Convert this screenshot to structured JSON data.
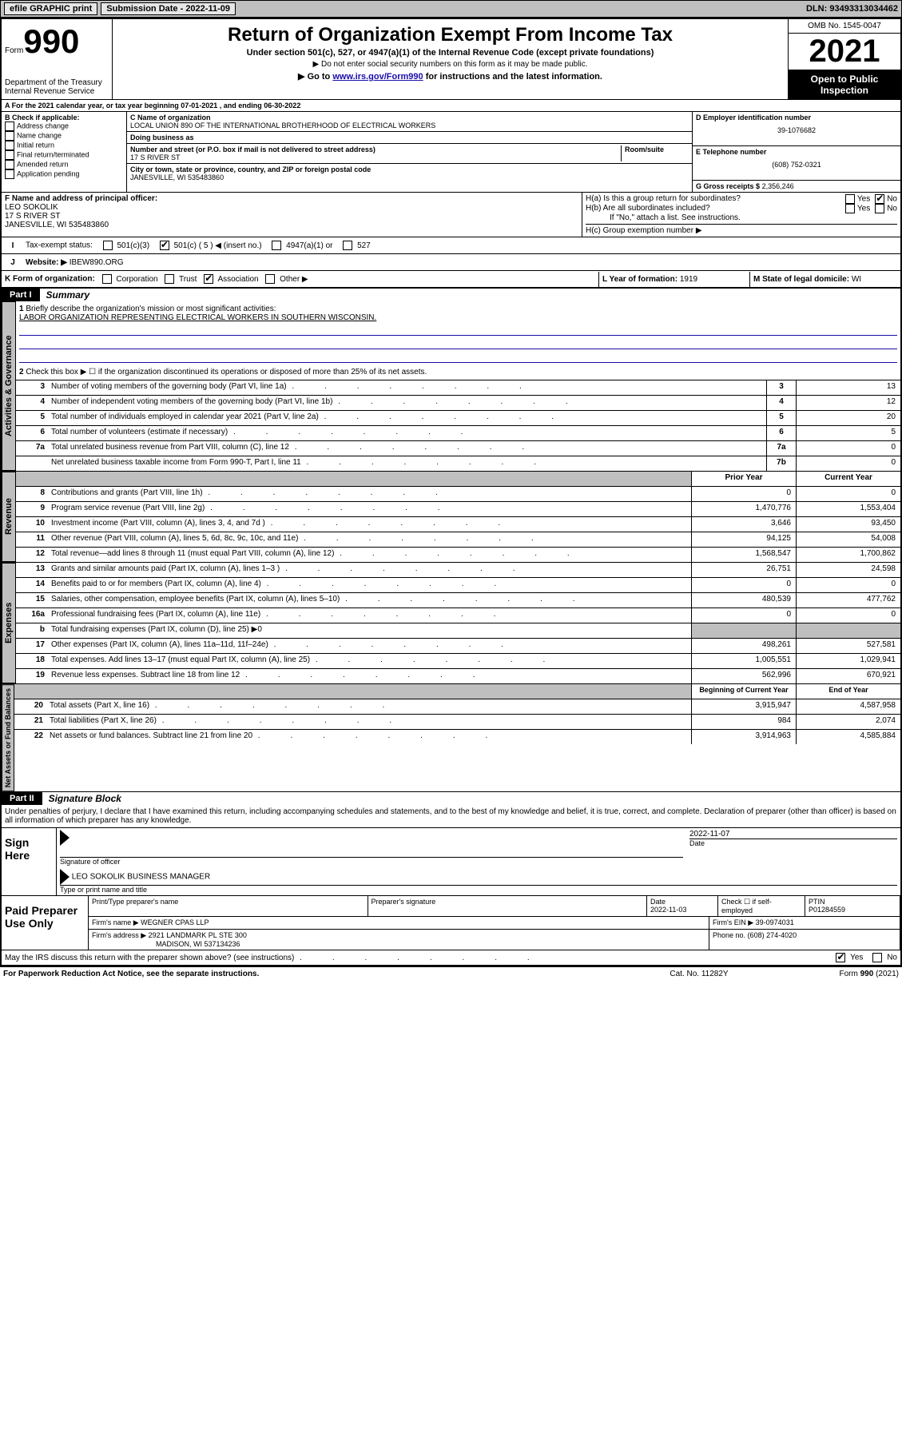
{
  "topbar": {
    "efile": "efile GRAPHIC print",
    "submission_label": "Submission Date - 2022-11-09",
    "dln": "DLN: 93493313034462"
  },
  "header": {
    "form_word": "Form",
    "form_number": "990",
    "dept": "Department of the Treasury",
    "irs": "Internal Revenue Service",
    "title": "Return of Organization Exempt From Income Tax",
    "subtitle1": "Under section 501(c), 527, or 4947(a)(1) of the Internal Revenue Code (except private foundations)",
    "subtitle2": "▶ Do not enter social security numbers on this form as it may be made public.",
    "subtitle3_pre": "▶ Go to ",
    "subtitle3_link": "www.irs.gov/Form990",
    "subtitle3_post": " for instructions and the latest information.",
    "omb": "OMB No. 1545-0047",
    "year": "2021",
    "open_public": "Open to Public Inspection"
  },
  "line_a": "A For the 2021 calendar year, or tax year beginning 07-01-2021   , and ending 06-30-2022",
  "section_b": {
    "heading": "B Check if applicable:",
    "items": [
      "Address change",
      "Name change",
      "Initial return",
      "Final return/terminated",
      "Amended return",
      "Application pending"
    ]
  },
  "section_c": {
    "name_label": "C Name of organization",
    "name": "LOCAL UNION 890 OF THE INTERNATIONAL BROTHERHOOD OF ELECTRICAL WORKERS",
    "dba_label": "Doing business as",
    "street_label": "Number and street (or P.O. box if mail is not delivered to street address)",
    "room_label": "Room/suite",
    "street": "17 S RIVER ST",
    "city_label": "City or town, state or province, country, and ZIP or foreign postal code",
    "city": "JANESVILLE, WI  535483860"
  },
  "section_d": {
    "label": "D Employer identification number",
    "value": "39-1076682"
  },
  "section_e": {
    "label": "E Telephone number",
    "value": "(608) 752-0321"
  },
  "section_g": {
    "label": "G Gross receipts $",
    "value": "2,356,246"
  },
  "section_f": {
    "label": "F Name and address of principal officer:",
    "name": "LEO SOKOLIK",
    "street": "17 S RIVER ST",
    "city": "JANESVILLE, WI  535483860"
  },
  "section_h": {
    "ha_label": "H(a)  Is this a group return for subordinates?",
    "hb_label": "H(b)  Are all subordinates included?",
    "hb_note": "If \"No,\" attach a list. See instructions.",
    "hc_label": "H(c)  Group exemption number ▶",
    "yes": "Yes",
    "no": "No"
  },
  "section_i": {
    "label": "Tax-exempt status:",
    "opt1": "501(c)(3)",
    "opt2": "501(c) ( 5 ) ◀ (insert no.)",
    "opt3": "4947(a)(1) or",
    "opt4": "527"
  },
  "section_j": {
    "label": "Website: ▶",
    "value": "IBEW890.ORG"
  },
  "section_k": {
    "label": "K Form of organization:",
    "opts": [
      "Corporation",
      "Trust",
      "Association",
      "Other ▶"
    ]
  },
  "section_l": {
    "label": "L Year of formation:",
    "value": "1919"
  },
  "section_m": {
    "label": "M State of legal domicile:",
    "value": "WI"
  },
  "part1": {
    "tag": "Part I",
    "title": "Summary",
    "q1_label": "Briefly describe the organization's mission or most significant activities:",
    "q1_text": "LABOR ORGANIZATION REPRESENTING ELECTRICAL WORKERS IN SOUTHERN WISCONSIN.",
    "q2": "Check this box ▶ ☐  if the organization discontinued its operations or disposed of more than 25% of its net assets.",
    "vtabs": {
      "gov": "Activities & Governance",
      "rev": "Revenue",
      "exp": "Expenses",
      "net": "Net Assets or Fund Balances"
    },
    "rows_gov": [
      {
        "n": "3",
        "d": "Number of voting members of the governing body (Part VI, line 1a)",
        "box": "3",
        "v": "13"
      },
      {
        "n": "4",
        "d": "Number of independent voting members of the governing body (Part VI, line 1b)",
        "box": "4",
        "v": "12"
      },
      {
        "n": "5",
        "d": "Total number of individuals employed in calendar year 2021 (Part V, line 2a)",
        "box": "5",
        "v": "20"
      },
      {
        "n": "6",
        "d": "Total number of volunteers (estimate if necessary)",
        "box": "6",
        "v": "5"
      },
      {
        "n": "7a",
        "d": "Total unrelated business revenue from Part VIII, column (C), line 12",
        "box": "7a",
        "v": "0"
      },
      {
        "n": "",
        "d": "Net unrelated business taxable income from Form 990-T, Part I, line 11",
        "box": "7b",
        "v": "0"
      }
    ],
    "col_hdr_prior": "Prior Year",
    "col_hdr_current": "Current Year",
    "rows_rev": [
      {
        "n": "8",
        "d": "Contributions and grants (Part VIII, line 1h)",
        "p": "0",
        "c": "0"
      },
      {
        "n": "9",
        "d": "Program service revenue (Part VIII, line 2g)",
        "p": "1,470,776",
        "c": "1,553,404"
      },
      {
        "n": "10",
        "d": "Investment income (Part VIII, column (A), lines 3, 4, and 7d )",
        "p": "3,646",
        "c": "93,450"
      },
      {
        "n": "11",
        "d": "Other revenue (Part VIII, column (A), lines 5, 6d, 8c, 9c, 10c, and 11e)",
        "p": "94,125",
        "c": "54,008"
      },
      {
        "n": "12",
        "d": "Total revenue—add lines 8 through 11 (must equal Part VIII, column (A), line 12)",
        "p": "1,568,547",
        "c": "1,700,862"
      }
    ],
    "rows_exp": [
      {
        "n": "13",
        "d": "Grants and similar amounts paid (Part IX, column (A), lines 1–3 )",
        "p": "26,751",
        "c": "24,598"
      },
      {
        "n": "14",
        "d": "Benefits paid to or for members (Part IX, column (A), line 4)",
        "p": "0",
        "c": "0"
      },
      {
        "n": "15",
        "d": "Salaries, other compensation, employee benefits (Part IX, column (A), lines 5–10)",
        "p": "480,539",
        "c": "477,762"
      },
      {
        "n": "16a",
        "d": "Professional fundraising fees (Part IX, column (A), line 11e)",
        "p": "0",
        "c": "0"
      },
      {
        "n": "b",
        "d": "Total fundraising expenses (Part IX, column (D), line 25) ▶0",
        "p": "",
        "c": "",
        "grey": true
      },
      {
        "n": "17",
        "d": "Other expenses (Part IX, column (A), lines 11a–11d, 11f–24e)",
        "p": "498,261",
        "c": "527,581"
      },
      {
        "n": "18",
        "d": "Total expenses. Add lines 13–17 (must equal Part IX, column (A), line 25)",
        "p": "1,005,551",
        "c": "1,029,941"
      },
      {
        "n": "19",
        "d": "Revenue less expenses. Subtract line 18 from line 12",
        "p": "562,996",
        "c": "670,921"
      }
    ],
    "col_hdr_begin": "Beginning of Current Year",
    "col_hdr_end": "End of Year",
    "rows_net": [
      {
        "n": "20",
        "d": "Total assets (Part X, line 16)",
        "p": "3,915,947",
        "c": "4,587,958"
      },
      {
        "n": "21",
        "d": "Total liabilities (Part X, line 26)",
        "p": "984",
        "c": "2,074"
      },
      {
        "n": "22",
        "d": "Net assets or fund balances. Subtract line 21 from line 20",
        "p": "3,914,963",
        "c": "4,585,884"
      }
    ]
  },
  "part2": {
    "tag": "Part II",
    "title": "Signature Block",
    "declaration": "Under penalties of perjury, I declare that I have examined this return, including accompanying schedules and statements, and to the best of my knowledge and belief, it is true, correct, and complete. Declaration of preparer (other than officer) is based on all information of which preparer has any knowledge.",
    "sign_here": "Sign Here",
    "sig_officer": "Signature of officer",
    "sig_date": "2022-11-07",
    "date_label": "Date",
    "officer_name": "LEO SOKOLIK  BUSINESS MANAGER",
    "type_name_label": "Type or print name and title",
    "paid_label": "Paid Preparer Use Only",
    "prep_name_label": "Print/Type preparer's name",
    "prep_sig_label": "Preparer's signature",
    "prep_date_label": "Date",
    "prep_date": "2022-11-03",
    "check_self": "Check ☐ if self-employed",
    "ptin_label": "PTIN",
    "ptin": "P01284559",
    "firm_name_label": "Firm's name    ▶",
    "firm_name": "WEGNER CPAS LLP",
    "firm_ein_label": "Firm's EIN ▶",
    "firm_ein": "39-0974031",
    "firm_addr_label": "Firm's address ▶",
    "firm_addr1": "2921 LANDMARK PL STE 300",
    "firm_addr2": "MADISON, WI  537134236",
    "phone_label": "Phone no.",
    "phone": "(608) 274-4020",
    "discuss": "May the IRS discuss this return with the preparer shown above? (see instructions)",
    "discuss_yes": "Yes",
    "discuss_no": "No"
  },
  "footer": {
    "left": "For Paperwork Reduction Act Notice, see the separate instructions.",
    "mid": "Cat. No. 11282Y",
    "right": "Form 990 (2021)"
  }
}
